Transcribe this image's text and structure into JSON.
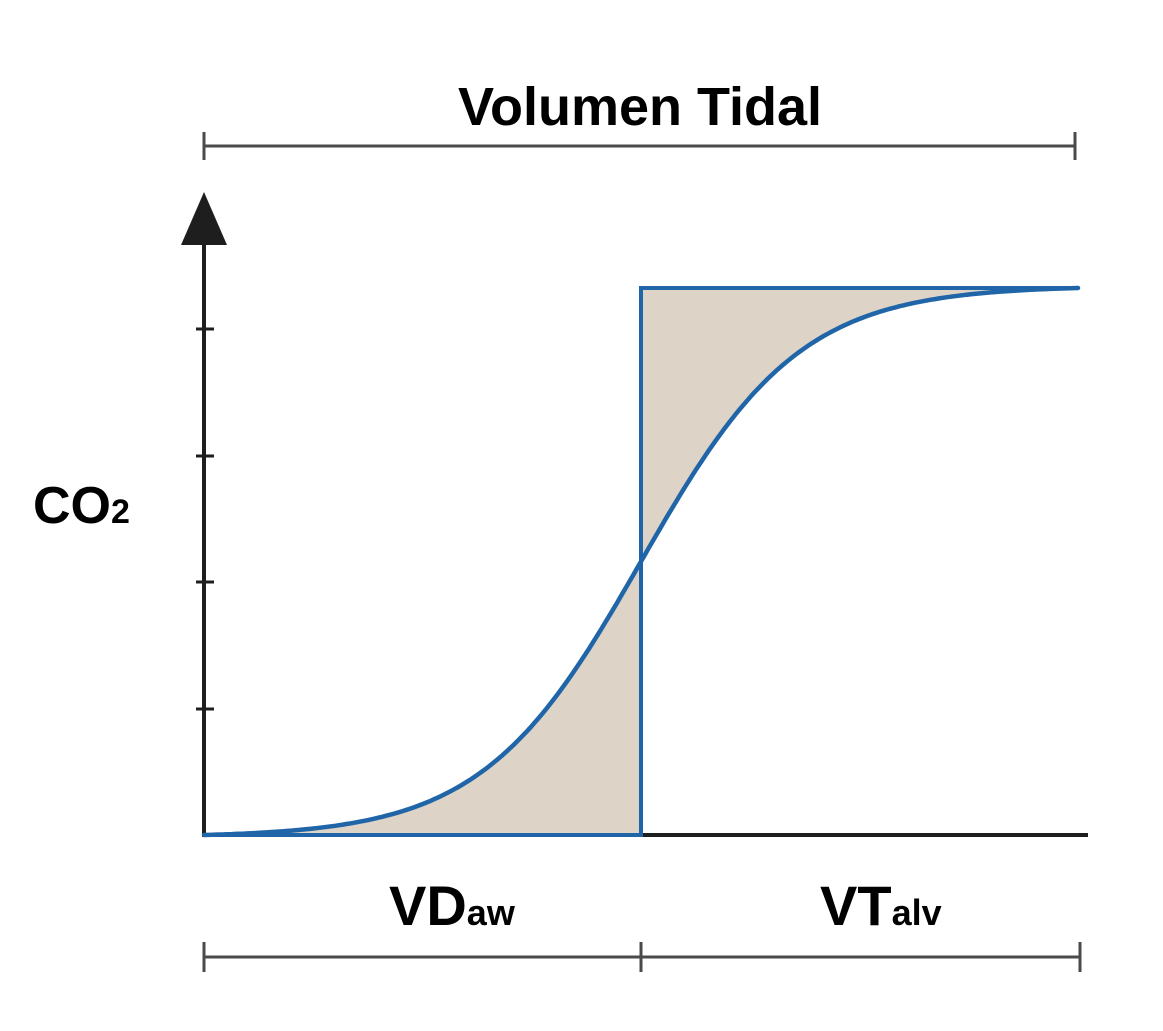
{
  "title": "Volumen Tidal",
  "y_axis": {
    "label_main": "CO",
    "label_sub": "2"
  },
  "segments": [
    {
      "label_main": "VD",
      "label_sub": "aw"
    },
    {
      "label_main": "VT",
      "label_sub": "alv"
    }
  ],
  "colors": {
    "curve": "#2065a8",
    "shaded_area": "#ddd3c7",
    "axis": "#1e1e1e",
    "bracket": "#4a4a4a"
  },
  "chart_data": {
    "type": "line",
    "description_of_marks": "sigmoid CO2 curve vs exhaled volume, vertical boundary split at the curve midpoint, equal shaded areas on both sides",
    "x": [
      0,
      0.14,
      0.28,
      0.43,
      0.5,
      0.57,
      0.71,
      0.86,
      1.0
    ],
    "y": [
      0,
      0.01,
      0.1,
      0.33,
      0.5,
      0.67,
      0.9,
      0.99,
      1.0
    ],
    "y_axis_ticks": 4,
    "boundary_x": 0.5,
    "plateau_y": 1.0,
    "xlim": [
      0,
      1
    ],
    "ylim": [
      0,
      1
    ]
  }
}
